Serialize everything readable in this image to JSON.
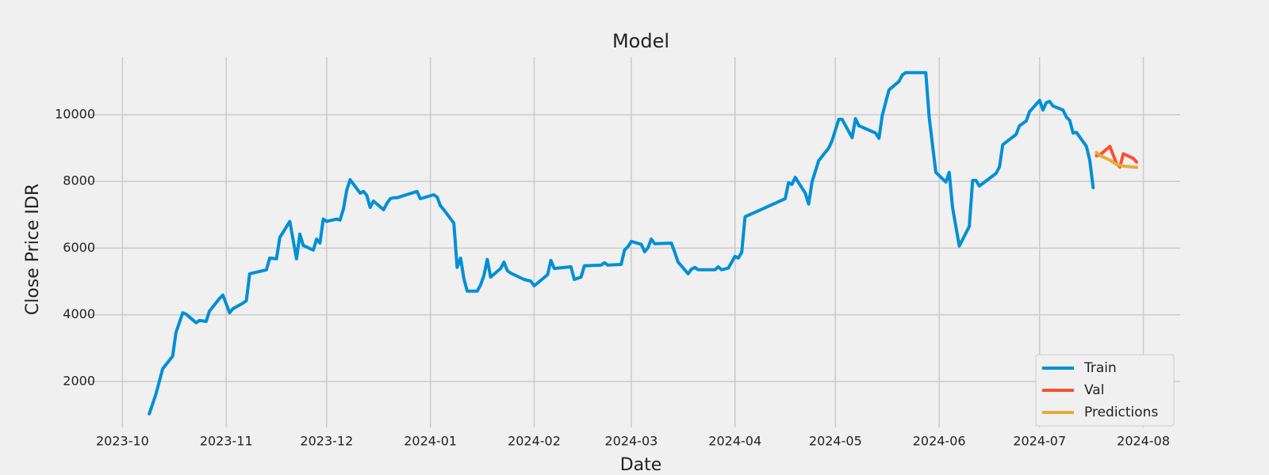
{
  "chart_data": {
    "type": "line",
    "title": "Model",
    "xlabel": "Date",
    "ylabel": "Close Price IDR",
    "xlim": [
      "2023-09-20",
      "2024-08-12"
    ],
    "xticks": [
      "2023-10",
      "2023-11",
      "2023-12",
      "2024-01",
      "2024-02",
      "2024-03",
      "2024-04",
      "2024-05",
      "2024-06",
      "2024-07",
      "2024-08"
    ],
    "ylim": [
      620,
      11730
    ],
    "yticks": [
      2000,
      4000,
      6000,
      8000,
      10000
    ],
    "grid": true,
    "legend": "lower right",
    "series": [
      {
        "name": "Train",
        "color": "#008fd5",
        "x": [
          "2023-10-09",
          "2023-10-11",
          "2023-10-13",
          "2023-10-16",
          "2023-10-17",
          "2023-10-19",
          "2023-10-20",
          "2023-10-23",
          "2023-10-24",
          "2023-10-26",
          "2023-10-27",
          "2023-10-30",
          "2023-10-31",
          "2023-11-02",
          "2023-11-03",
          "2023-11-06",
          "2023-11-07",
          "2023-11-08",
          "2023-11-13",
          "2023-11-14",
          "2023-11-16",
          "2023-11-17",
          "2023-11-20",
          "2023-11-22",
          "2023-11-23",
          "2023-11-24",
          "2023-11-27",
          "2023-11-28",
          "2023-11-29",
          "2023-11-30",
          "2023-12-01",
          "2023-12-04",
          "2023-12-05",
          "2023-12-06",
          "2023-12-07",
          "2023-12-08",
          "2023-12-11",
          "2023-12-12",
          "2023-12-13",
          "2023-12-14",
          "2023-12-15",
          "2023-12-18",
          "2023-12-19",
          "2023-12-20",
          "2023-12-21",
          "2023-12-22",
          "2023-12-28",
          "2023-12-29",
          "2024-01-02",
          "2024-01-03",
          "2024-01-04",
          "2024-01-05",
          "2024-01-08",
          "2024-01-09",
          "2024-01-10",
          "2024-01-11",
          "2024-01-12",
          "2024-01-15",
          "2024-01-16",
          "2024-01-17",
          "2024-01-18",
          "2024-01-19",
          "2024-01-22",
          "2024-01-23",
          "2024-01-24",
          "2024-01-25",
          "2024-01-29",
          "2024-01-31",
          "2024-02-01",
          "2024-02-05",
          "2024-02-06",
          "2024-02-07",
          "2024-02-12",
          "2024-02-13",
          "2024-02-15",
          "2024-02-16",
          "2024-02-21",
          "2024-02-22",
          "2024-02-23",
          "2024-02-27",
          "2024-02-28",
          "2024-02-29",
          "2024-03-01",
          "2024-03-04",
          "2024-03-05",
          "2024-03-06",
          "2024-03-07",
          "2024-03-08",
          "2024-03-13",
          "2024-03-14",
          "2024-03-15",
          "2024-03-18",
          "2024-03-19",
          "2024-03-20",
          "2024-03-21",
          "2024-03-26",
          "2024-03-27",
          "2024-03-28",
          "2024-03-30",
          "2024-04-01",
          "2024-04-02",
          "2024-04-03",
          "2024-04-04",
          "2024-04-16",
          "2024-04-17",
          "2024-04-18",
          "2024-04-19",
          "2024-04-22",
          "2024-04-23",
          "2024-04-24",
          "2024-04-26",
          "2024-04-29",
          "2024-04-30",
          "2024-05-02",
          "2024-05-03",
          "2024-05-06",
          "2024-05-07",
          "2024-05-08",
          "2024-05-13",
          "2024-05-14",
          "2024-05-15",
          "2024-05-17",
          "2024-05-20",
          "2024-05-21",
          "2024-05-22",
          "2024-05-28",
          "2024-05-29",
          "2024-05-31",
          "2024-06-03",
          "2024-06-04",
          "2024-06-05",
          "2024-06-07",
          "2024-06-10",
          "2024-06-11",
          "2024-06-12",
          "2024-06-13",
          "2024-06-18",
          "2024-06-19",
          "2024-06-20",
          "2024-06-24",
          "2024-06-25",
          "2024-06-27",
          "2024-06-28",
          "2024-07-01",
          "2024-07-02",
          "2024-07-03",
          "2024-07-04",
          "2024-07-05",
          "2024-07-08",
          "2024-07-09",
          "2024-07-10",
          "2024-07-11",
          "2024-07-12",
          "2024-07-15",
          "2024-07-16",
          "2024-07-17"
        ],
        "values": [
          1030,
          1620,
          2380,
          2760,
          3470,
          4060,
          4020,
          3760,
          3830,
          3800,
          4110,
          4490,
          4590,
          4060,
          4180,
          4350,
          4420,
          5230,
          5350,
          5700,
          5680,
          6320,
          6800,
          5680,
          6420,
          6080,
          5940,
          6270,
          6150,
          6870,
          6800,
          6870,
          6840,
          7170,
          7740,
          8050,
          7650,
          7700,
          7580,
          7220,
          7410,
          7150,
          7340,
          7480,
          7510,
          7510,
          7700,
          7480,
          7600,
          7530,
          7270,
          7150,
          6750,
          5420,
          5700,
          5080,
          4710,
          4710,
          4900,
          5180,
          5660,
          5130,
          5390,
          5580,
          5320,
          5250,
          5060,
          5010,
          4870,
          5200,
          5630,
          5390,
          5440,
          5060,
          5130,
          5470,
          5490,
          5560,
          5490,
          5510,
          5940,
          6040,
          6200,
          6110,
          5890,
          6010,
          6270,
          6130,
          6150,
          5870,
          5580,
          5230,
          5370,
          5420,
          5350,
          5350,
          5440,
          5350,
          5400,
          5750,
          5700,
          5870,
          6940,
          7480,
          7960,
          7910,
          8120,
          7650,
          7320,
          7980,
          8620,
          9000,
          9220,
          9860,
          9860,
          9310,
          9880,
          9670,
          9450,
          9290,
          9980,
          10740,
          11000,
          11190,
          11260,
          11260,
          9930,
          8270,
          7980,
          8270,
          7220,
          6060,
          6650,
          8030,
          8030,
          7860,
          8240,
          8430,
          9100,
          9410,
          9670,
          9810,
          10090,
          10430,
          10140,
          10360,
          10400,
          10260,
          10140,
          9930,
          9830,
          9450,
          9470,
          9050,
          8620,
          7810
        ]
      },
      {
        "name": "Val",
        "color": "#fc4f30",
        "x": [
          "2024-07-18",
          "2024-07-19",
          "2024-07-22",
          "2024-07-23",
          "2024-07-24",
          "2024-07-25",
          "2024-07-26",
          "2024-07-29",
          "2024-07-30"
        ],
        "values": [
          8770,
          8790,
          9050,
          8790,
          8530,
          8430,
          8830,
          8690,
          8580
        ]
      },
      {
        "name": "Predictions",
        "color": "#e5ae38",
        "x": [
          "2024-07-18",
          "2024-07-19",
          "2024-07-22",
          "2024-07-23",
          "2024-07-24",
          "2024-07-25",
          "2024-07-26",
          "2024-07-29",
          "2024-07-30"
        ],
        "values": [
          8870,
          8780,
          8640,
          8570,
          8510,
          8480,
          8460,
          8430,
          8420
        ]
      }
    ]
  }
}
